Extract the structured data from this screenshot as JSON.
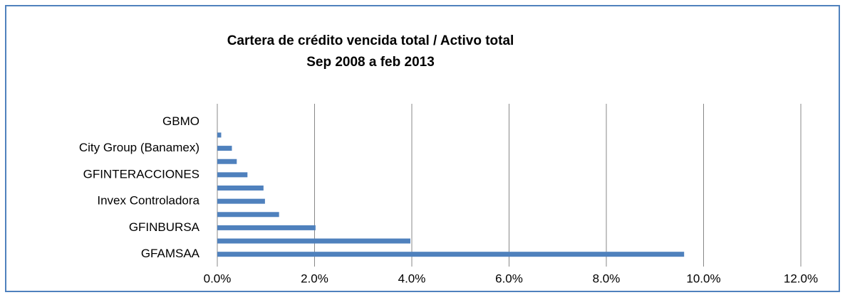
{
  "chart_data": {
    "type": "barh",
    "title": "Cartera de crédito vencida total / Activo total",
    "subtitle": "Sep 2008 a feb 2013",
    "categories": [
      "GFAMSAA",
      null,
      "GFINBURSA",
      null,
      "Invex Controladora",
      null,
      "GFINTERACCIONES",
      null,
      "City Group (Banamex)",
      null,
      "GBMO"
    ],
    "values": [
      9.6,
      3.97,
      2.02,
      1.27,
      0.98,
      0.95,
      0.62,
      0.4,
      0.3,
      0.08,
      0
    ],
    "color": "#4f81bd",
    "xlim": [
      0,
      12
    ],
    "xticks": [
      {
        "value": 0,
        "label": "0.0%"
      },
      {
        "value": 2,
        "label": "2.0%"
      },
      {
        "value": 4,
        "label": "4.0%"
      },
      {
        "value": 6,
        "label": "6.0%"
      },
      {
        "value": 8,
        "label": "8.0%"
      },
      {
        "value": 10,
        "label": "10.0%"
      },
      {
        "value": 12,
        "label": "12.0%"
      }
    ],
    "grid": true
  }
}
